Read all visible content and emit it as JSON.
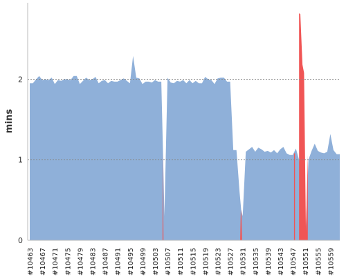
{
  "chart_data": {
    "type": "area",
    "title": "",
    "ylabel": "mins",
    "xlabel": "",
    "ylim": [
      0,
      2.95
    ],
    "yticks": [
      0,
      1,
      2
    ],
    "grid": "horizontal dotted lines at y ticks",
    "xtick_labels": [
      "#10463",
      "#10467",
      "#10471",
      "#10475",
      "#10479",
      "#10483",
      "#10487",
      "#10491",
      "#10495",
      "#10499",
      "#10503",
      "#10507",
      "#10511",
      "#10515",
      "#10519",
      "#10523",
      "#10527",
      "#10531",
      "#10535",
      "#10539",
      "#10543",
      "#10547",
      "#10551",
      "#10555",
      "#10559"
    ],
    "x_range": [
      10463,
      10562
    ],
    "series": [
      {
        "style": "blue fill",
        "points": [
          [
            10463,
            1.95
          ],
          [
            10464,
            1.95
          ],
          [
            10465,
            2.0
          ],
          [
            10466,
            2.04
          ],
          [
            10467,
            1.99
          ],
          [
            10468,
            2.0
          ],
          [
            10469,
            1.99
          ],
          [
            10470,
            2.02
          ],
          [
            10471,
            1.94
          ],
          [
            10472,
            1.99
          ],
          [
            10473,
            1.98
          ],
          [
            10474,
            2.0
          ],
          [
            10475,
            2.0
          ],
          [
            10476,
            1.99
          ],
          [
            10477,
            2.04
          ],
          [
            10478,
            2.04
          ],
          [
            10479,
            1.94
          ],
          [
            10480,
            1.98
          ],
          [
            10481,
            2.02
          ],
          [
            10482,
            1.99
          ],
          [
            10483,
            2.0
          ],
          [
            10484,
            2.03
          ],
          [
            10485,
            1.95
          ],
          [
            10486,
            1.98
          ],
          [
            10487,
            1.99
          ],
          [
            10488,
            1.95
          ],
          [
            10489,
            1.98
          ],
          [
            10490,
            1.97
          ],
          [
            10491,
            1.97
          ],
          [
            10492,
            1.99
          ],
          [
            10493,
            2.01
          ],
          [
            10494,
            1.98
          ],
          [
            10495,
            1.95
          ],
          [
            10496,
            2.29
          ],
          [
            10497,
            2.02
          ],
          [
            10498,
            2.01
          ],
          [
            10499,
            1.94
          ],
          [
            10500,
            1.97
          ],
          [
            10501,
            1.97
          ],
          [
            10502,
            1.96
          ],
          [
            10503,
            1.99
          ],
          [
            10504,
            1.97
          ],
          [
            10505,
            1.97
          ],
          [
            10505.6,
            1.0
          ],
          [
            10506,
            0.3
          ],
          [
            10507,
            2.02
          ],
          [
            10508,
            1.96
          ],
          [
            10509,
            1.95
          ],
          [
            10510,
            1.98
          ],
          [
            10511,
            1.97
          ],
          [
            10512,
            1.99
          ],
          [
            10513,
            1.95
          ],
          [
            10514,
            1.99
          ],
          [
            10515,
            1.95
          ],
          [
            10516,
            1.98
          ],
          [
            10517,
            1.95
          ],
          [
            10518,
            1.95
          ],
          [
            10519,
            2.03
          ],
          [
            10520,
            2.0
          ],
          [
            10521,
            1.99
          ],
          [
            10522,
            1.94
          ],
          [
            10523,
            2.01
          ],
          [
            10524,
            2.02
          ],
          [
            10525,
            2.02
          ],
          [
            10526,
            1.97
          ],
          [
            10527,
            1.97
          ],
          [
            10528,
            1.12
          ],
          [
            10529,
            1.12
          ],
          [
            10530,
            0.6
          ],
          [
            10530.5,
            0.38
          ],
          [
            10531,
            0.3
          ],
          [
            10532,
            1.1
          ],
          [
            10533,
            1.13
          ],
          [
            10534,
            1.16
          ],
          [
            10535,
            1.1
          ],
          [
            10536,
            1.15
          ],
          [
            10537,
            1.13
          ],
          [
            10538,
            1.1
          ],
          [
            10539,
            1.11
          ],
          [
            10540,
            1.09
          ],
          [
            10541,
            1.12
          ],
          [
            10542,
            1.08
          ],
          [
            10543,
            1.13
          ],
          [
            10544,
            1.16
          ],
          [
            10545,
            1.08
          ],
          [
            10546,
            1.06
          ],
          [
            10547,
            1.06
          ],
          [
            10548,
            1.14
          ],
          [
            10549,
            1.0
          ],
          [
            10550,
            0.6
          ],
          [
            10551,
            0.0
          ],
          [
            10552,
            1.0
          ],
          [
            10553,
            1.11
          ],
          [
            10554,
            1.2
          ],
          [
            10555,
            1.11
          ],
          [
            10556,
            1.09
          ],
          [
            10557,
            1.08
          ],
          [
            10558,
            1.1
          ],
          [
            10559,
            1.32
          ],
          [
            10560,
            1.12
          ],
          [
            10561,
            1.07
          ],
          [
            10562,
            1.07
          ]
        ]
      },
      {
        "style": "red fill",
        "segments": [
          [
            [
              10505.2,
              0
            ],
            [
              10505.4,
              0.0
            ],
            [
              10505.5,
              1.12
            ],
            [
              10505.7,
              0.0
            ],
            [
              10505.8,
              0
            ]
          ],
          [
            [
              10530.2,
              0
            ],
            [
              10530.4,
              0.38
            ],
            [
              10530.6,
              0.3
            ],
            [
              10530.8,
              0
            ]
          ],
          [
            [
              10547.4,
              0
            ],
            [
              10547.4,
              1.08
            ],
            [
              10547.7,
              1.08
            ],
            [
              10547.7,
              0
            ]
          ],
          [
            [
              10549.0,
              0
            ],
            [
              10549.0,
              2.82
            ],
            [
              10549.4,
              2.81
            ],
            [
              10550.1,
              2.18
            ],
            [
              10550.6,
              2.08
            ],
            [
              10551.2,
              0.1
            ],
            [
              10551.7,
              0.95
            ],
            [
              10551.8,
              1.06
            ],
            [
              10551.8,
              0
            ]
          ]
        ]
      }
    ],
    "colors": {
      "series_fill": "#8fb0d9",
      "highlight_fill": "#f05555",
      "grid": "#888888",
      "axis": "#bbbbbb"
    }
  }
}
